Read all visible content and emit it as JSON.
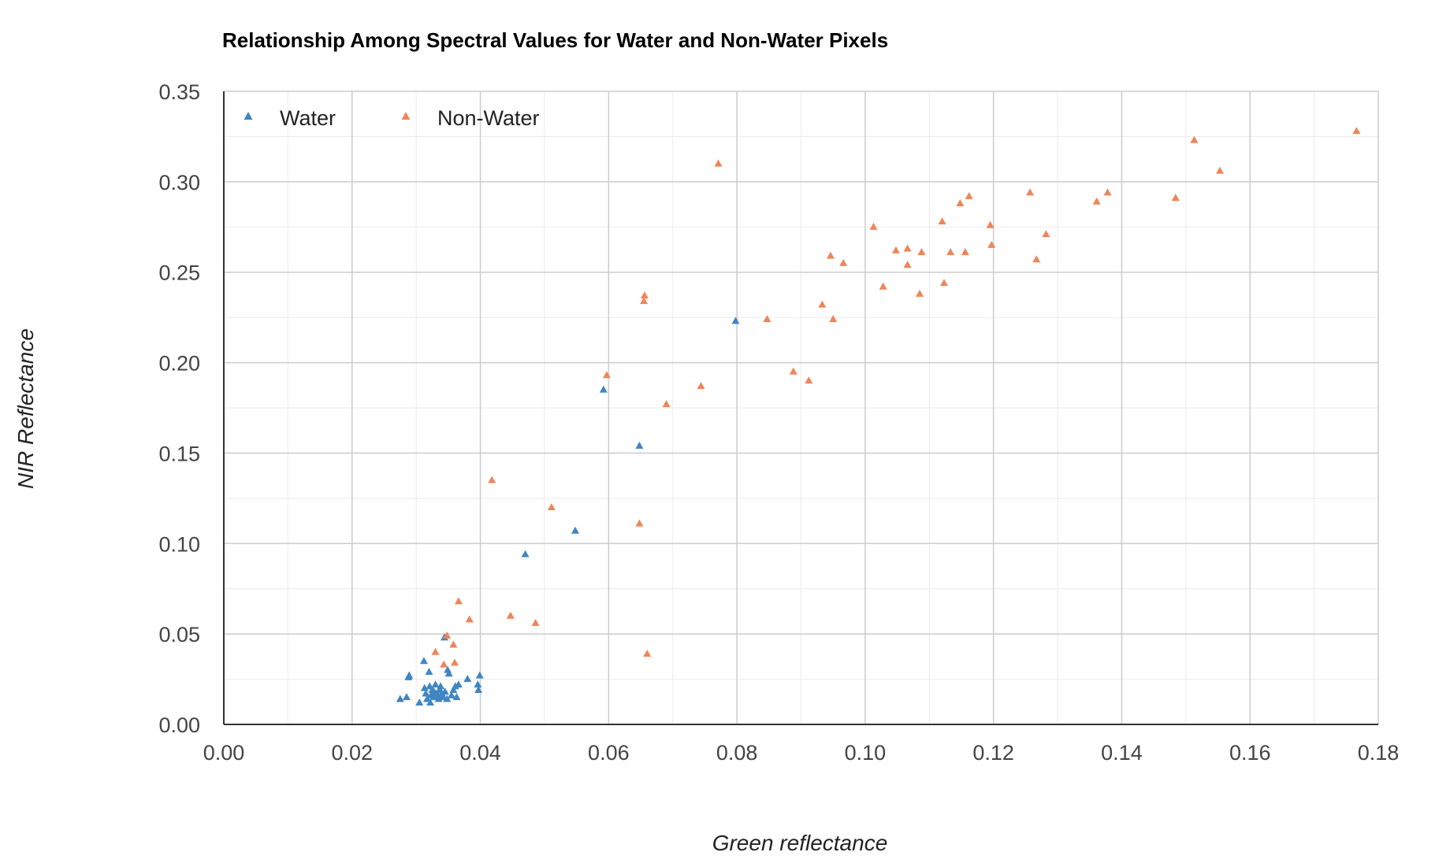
{
  "chart_data": {
    "type": "scatter",
    "title": "Relationship Among Spectral Values for Water and Non-Water Pixels",
    "xlabel": "Green reflectance",
    "ylabel": "NIR Reflectance",
    "xlim": [
      0,
      0.18
    ],
    "ylim": [
      0,
      0.35
    ],
    "xticks": [
      "0.00",
      "0.02",
      "0.04",
      "0.06",
      "0.08",
      "0.10",
      "0.12",
      "0.14",
      "0.16",
      "0.18"
    ],
    "yticks": [
      "0.00",
      "0.05",
      "0.10",
      "0.15",
      "0.20",
      "0.25",
      "0.30",
      "0.35"
    ],
    "grid": true,
    "legend_position": "top-left",
    "marker": "triangle",
    "series": [
      {
        "name": "Water",
        "color": "#3f86c3",
        "points": [
          [
            0.0275,
            0.014
          ],
          [
            0.0285,
            0.015
          ],
          [
            0.0288,
            0.026
          ],
          [
            0.0289,
            0.027
          ],
          [
            0.0305,
            0.012
          ],
          [
            0.0312,
            0.035
          ],
          [
            0.0313,
            0.02
          ],
          [
            0.0315,
            0.017
          ],
          [
            0.0317,
            0.014
          ],
          [
            0.032,
            0.029
          ],
          [
            0.0321,
            0.021
          ],
          [
            0.0322,
            0.012
          ],
          [
            0.0323,
            0.016
          ],
          [
            0.0325,
            0.019
          ],
          [
            0.0327,
            0.015
          ],
          [
            0.0328,
            0.018
          ],
          [
            0.033,
            0.022
          ],
          [
            0.0332,
            0.017
          ],
          [
            0.0334,
            0.016
          ],
          [
            0.0335,
            0.014
          ],
          [
            0.0337,
            0.019
          ],
          [
            0.0338,
            0.021
          ],
          [
            0.034,
            0.017
          ],
          [
            0.0342,
            0.015
          ],
          [
            0.0344,
            0.048
          ],
          [
            0.0345,
            0.018
          ],
          [
            0.0348,
            0.014
          ],
          [
            0.0349,
            0.03
          ],
          [
            0.0351,
            0.028
          ],
          [
            0.0355,
            0.016
          ],
          [
            0.0358,
            0.019
          ],
          [
            0.0361,
            0.021
          ],
          [
            0.0363,
            0.015
          ],
          [
            0.0366,
            0.022
          ],
          [
            0.038,
            0.025
          ],
          [
            0.0396,
            0.022
          ],
          [
            0.0397,
            0.019
          ],
          [
            0.0399,
            0.027
          ],
          [
            0.047,
            0.094
          ],
          [
            0.0548,
            0.107
          ],
          [
            0.0592,
            0.185
          ],
          [
            0.0648,
            0.154
          ],
          [
            0.0798,
            0.223
          ]
        ]
      },
      {
        "name": "Non-Water",
        "color": "#ef8559",
        "points": [
          [
            0.033,
            0.04
          ],
          [
            0.0343,
            0.033
          ],
          [
            0.0348,
            0.049
          ],
          [
            0.0358,
            0.044
          ],
          [
            0.036,
            0.034
          ],
          [
            0.0366,
            0.068
          ],
          [
            0.0383,
            0.058
          ],
          [
            0.0418,
            0.135
          ],
          [
            0.0447,
            0.06
          ],
          [
            0.0486,
            0.056
          ],
          [
            0.0511,
            0.12
          ],
          [
            0.0597,
            0.193
          ],
          [
            0.0648,
            0.111
          ],
          [
            0.0655,
            0.234
          ],
          [
            0.0656,
            0.237
          ],
          [
            0.066,
            0.039
          ],
          [
            0.069,
            0.177
          ],
          [
            0.0744,
            0.187
          ],
          [
            0.0771,
            0.31
          ],
          [
            0.0847,
            0.224
          ],
          [
            0.0888,
            0.195
          ],
          [
            0.0912,
            0.19
          ],
          [
            0.0933,
            0.232
          ],
          [
            0.0946,
            0.259
          ],
          [
            0.095,
            0.224
          ],
          [
            0.0966,
            0.255
          ],
          [
            0.1013,
            0.275
          ],
          [
            0.1028,
            0.242
          ],
          [
            0.1048,
            0.262
          ],
          [
            0.1066,
            0.263
          ],
          [
            0.1066,
            0.254
          ],
          [
            0.1085,
            0.238
          ],
          [
            0.1088,
            0.261
          ],
          [
            0.112,
            0.278
          ],
          [
            0.1123,
            0.244
          ],
          [
            0.1133,
            0.261
          ],
          [
            0.1148,
            0.288
          ],
          [
            0.1156,
            0.261
          ],
          [
            0.1162,
            0.292
          ],
          [
            0.1195,
            0.276
          ],
          [
            0.1197,
            0.265
          ],
          [
            0.1257,
            0.294
          ],
          [
            0.1267,
            0.257
          ],
          [
            0.1282,
            0.271
          ],
          [
            0.1361,
            0.289
          ],
          [
            0.1378,
            0.294
          ],
          [
            0.1484,
            0.291
          ],
          [
            0.1513,
            0.323
          ],
          [
            0.1553,
            0.306
          ],
          [
            0.1766,
            0.328
          ]
        ]
      }
    ]
  }
}
